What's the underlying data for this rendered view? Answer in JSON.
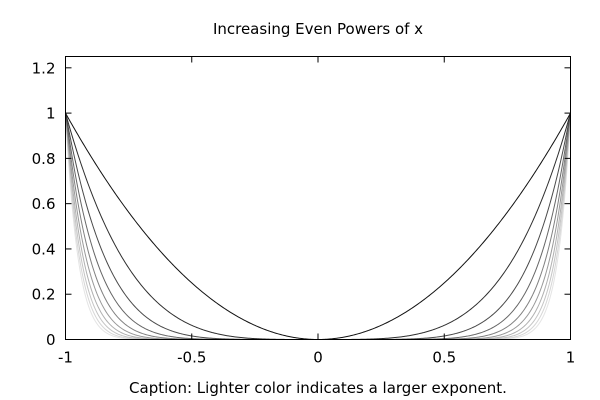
{
  "chart_data": {
    "type": "line",
    "title": "Increasing Even Powers of x",
    "caption": "Caption: Lighter color indicates a larger exponent.",
    "xlabel": "",
    "ylabel": "",
    "xlim": [
      -1,
      1
    ],
    "ylim": [
      0,
      1.25
    ],
    "x_ticks": [
      -1,
      -0.5,
      0,
      0.5,
      1
    ],
    "x_tick_labels": [
      "-1",
      "-0.5",
      "0",
      "0.5",
      "1"
    ],
    "y_ticks": [
      0,
      0.2,
      0.4,
      0.6,
      0.8,
      1,
      1.2
    ],
    "y_tick_labels": [
      "0",
      "0.2",
      "0.4",
      "0.6",
      "0.8",
      "1",
      "1.2"
    ],
    "grid": false,
    "legend": "none",
    "series": [
      {
        "function": "x^2",
        "exponent": 2,
        "color": "#111111"
      },
      {
        "function": "x^4",
        "exponent": 4,
        "color": "#2e2e2e"
      },
      {
        "function": "x^6",
        "exponent": 6,
        "color": "#4a4a4a"
      },
      {
        "function": "x^8",
        "exponent": 8,
        "color": "#666666"
      },
      {
        "function": "x^10",
        "exponent": 10,
        "color": "#808080"
      },
      {
        "function": "x^12",
        "exponent": 12,
        "color": "#999999"
      },
      {
        "function": "x^14",
        "exponent": 14,
        "color": "#b0b0b0"
      },
      {
        "function": "x^16",
        "exponent": 16,
        "color": "#c4c4c4"
      },
      {
        "function": "x^18",
        "exponent": 18,
        "color": "#d6d6d6"
      },
      {
        "function": "x^20",
        "exponent": 20,
        "color": "#e4e4e4"
      }
    ]
  }
}
